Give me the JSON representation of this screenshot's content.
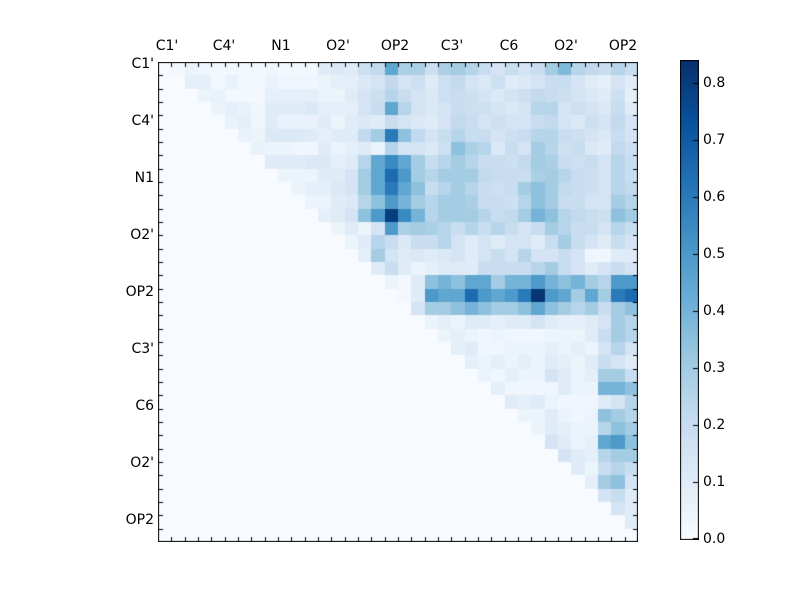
{
  "figure": {
    "background": "#ffffff",
    "frame_color": "#000000"
  },
  "chart_data": {
    "type": "heatmap",
    "title": "",
    "xlabel": "",
    "ylabel": "",
    "n_rows": 36,
    "n_cols": 36,
    "group_size": 4,
    "shape": "upper-triangular, diagonal and lower triangle empty (0)",
    "colormap": "Blues",
    "vmin": 0.0,
    "vmax": 0.84,
    "grid": false,
    "legend_position": "colorbar-right",
    "x_tick_labels": [
      "C1'",
      "C4'",
      "N1",
      "O2'",
      "OP2",
      "C3'",
      "C6",
      "O2'",
      "OP2"
    ],
    "y_tick_labels": [
      "C1'",
      "C4'",
      "N1",
      "O2'",
      "OP2",
      "C3'",
      "C6",
      "O2'",
      "OP2"
    ],
    "colorbar_tick_labels": [
      "0.0",
      "0.1",
      "0.2",
      "0.3",
      "0.4",
      "0.5",
      "0.6",
      "0.7",
      "0.8"
    ],
    "matrix": [
      [
        0,
        0.02,
        0.05,
        0.03,
        0.02,
        0.02,
        0.02,
        0.02,
        0.03,
        0.02,
        0.02,
        0.02,
        0.1,
        0.12,
        0.1,
        0.18,
        0.22,
        0.45,
        0.28,
        0.28,
        0.18,
        0.28,
        0.3,
        0.25,
        0.2,
        0.15,
        0.2,
        0.15,
        0.2,
        0.3,
        0.38,
        0.25,
        0.22,
        0.2,
        0.25,
        0.2
      ],
      [
        0,
        0,
        0.08,
        0.08,
        0.02,
        0.06,
        0.02,
        0.02,
        0.06,
        0.03,
        0.03,
        0.03,
        0.05,
        0.08,
        0.08,
        0.12,
        0.15,
        0.22,
        0.15,
        0.18,
        0.1,
        0.18,
        0.22,
        0.15,
        0.12,
        0.18,
        0.1,
        0.12,
        0.15,
        0.2,
        0.2,
        0.15,
        0.1,
        0.08,
        0.15,
        0.1
      ],
      [
        0,
        0,
        0,
        0.05,
        0.06,
        0.02,
        0.02,
        0.02,
        0.08,
        0.08,
        0.08,
        0.08,
        0.05,
        0.05,
        0.1,
        0.15,
        0.18,
        0.25,
        0.2,
        0.15,
        0.12,
        0.18,
        0.2,
        0.18,
        0.15,
        0.12,
        0.15,
        0.18,
        0.22,
        0.2,
        0.18,
        0.15,
        0.12,
        0.1,
        0.18,
        0.08
      ],
      [
        0,
        0,
        0,
        0,
        0.05,
        0.08,
        0.06,
        0.03,
        0.1,
        0.1,
        0.1,
        0.12,
        0.08,
        0.08,
        0.08,
        0.15,
        0.2,
        0.45,
        0.25,
        0.15,
        0.12,
        0.15,
        0.2,
        0.18,
        0.18,
        0.15,
        0.12,
        0.15,
        0.25,
        0.25,
        0.15,
        0.18,
        0.15,
        0.12,
        0.2,
        0.1
      ],
      [
        0,
        0,
        0,
        0,
        0,
        0.06,
        0.08,
        0.03,
        0.1,
        0.06,
        0.06,
        0.06,
        0.1,
        0.05,
        0.1,
        0.12,
        0.1,
        0.2,
        0.15,
        0.12,
        0.1,
        0.15,
        0.22,
        0.2,
        0.15,
        0.18,
        0.15,
        0.15,
        0.2,
        0.22,
        0.15,
        0.12,
        0.18,
        0.15,
        0.22,
        0.15
      ],
      [
        0,
        0,
        0,
        0,
        0,
        0,
        0.06,
        0.05,
        0.12,
        0.12,
        0.12,
        0.1,
        0.08,
        0.1,
        0.1,
        0.22,
        0.3,
        0.6,
        0.35,
        0.22,
        0.15,
        0.2,
        0.25,
        0.2,
        0.2,
        0.15,
        0.18,
        0.2,
        0.25,
        0.25,
        0.2,
        0.18,
        0.15,
        0.12,
        0.2,
        0.15
      ],
      [
        0,
        0,
        0,
        0,
        0,
        0,
        0,
        0.06,
        0.05,
        0.05,
        0.03,
        0.03,
        0.1,
        0.05,
        0.08,
        0.1,
        0.05,
        0.25,
        0.15,
        0.15,
        0.12,
        0.18,
        0.35,
        0.28,
        0.25,
        0.12,
        0.2,
        0.15,
        0.3,
        0.25,
        0.18,
        0.2,
        0.12,
        0.1,
        0.22,
        0.18
      ],
      [
        0,
        0,
        0,
        0,
        0,
        0,
        0,
        0,
        0.1,
        0.1,
        0.1,
        0.12,
        0.12,
        0.08,
        0.1,
        0.25,
        0.45,
        0.55,
        0.45,
        0.3,
        0.2,
        0.25,
        0.3,
        0.25,
        0.2,
        0.2,
        0.18,
        0.22,
        0.3,
        0.28,
        0.2,
        0.18,
        0.2,
        0.15,
        0.25,
        0.2
      ],
      [
        0,
        0,
        0,
        0,
        0,
        0,
        0,
        0,
        0,
        0.05,
        0.05,
        0.05,
        0.1,
        0.1,
        0.15,
        0.3,
        0.45,
        0.65,
        0.5,
        0.3,
        0.25,
        0.3,
        0.3,
        0.3,
        0.22,
        0.2,
        0.2,
        0.2,
        0.28,
        0.3,
        0.25,
        0.2,
        0.18,
        0.15,
        0.25,
        0.2
      ],
      [
        0,
        0,
        0,
        0,
        0,
        0,
        0,
        0,
        0,
        0,
        0.05,
        0.08,
        0.08,
        0.12,
        0.15,
        0.3,
        0.45,
        0.6,
        0.45,
        0.35,
        0.2,
        0.25,
        0.3,
        0.25,
        0.2,
        0.18,
        0.2,
        0.3,
        0.35,
        0.3,
        0.22,
        0.2,
        0.18,
        0.15,
        0.25,
        0.22
      ],
      [
        0,
        0,
        0,
        0,
        0,
        0,
        0,
        0,
        0,
        0,
        0,
        0.05,
        0.05,
        0.1,
        0.12,
        0.25,
        0.35,
        0.5,
        0.4,
        0.3,
        0.25,
        0.3,
        0.3,
        0.28,
        0.2,
        0.2,
        0.18,
        0.25,
        0.35,
        0.3,
        0.2,
        0.2,
        0.15,
        0.15,
        0.3,
        0.25
      ],
      [
        0,
        0,
        0,
        0,
        0,
        0,
        0,
        0,
        0,
        0,
        0,
        0,
        0.08,
        0.1,
        0.15,
        0.35,
        0.5,
        0.8,
        0.55,
        0.4,
        0.25,
        0.3,
        0.3,
        0.3,
        0.25,
        0.2,
        0.22,
        0.3,
        0.4,
        0.35,
        0.25,
        0.22,
        0.2,
        0.18,
        0.35,
        0.3
      ],
      [
        0,
        0,
        0,
        0,
        0,
        0,
        0,
        0,
        0,
        0,
        0,
        0,
        0,
        0.05,
        0.1,
        0.05,
        0.15,
        0.5,
        0.28,
        0.3,
        0.28,
        0.25,
        0.2,
        0.25,
        0.2,
        0.25,
        0.2,
        0.15,
        0.2,
        0.3,
        0.25,
        0.2,
        0.2,
        0.15,
        0.25,
        0.2
      ],
      [
        0,
        0,
        0,
        0,
        0,
        0,
        0,
        0,
        0,
        0,
        0,
        0,
        0,
        0,
        0.05,
        0.1,
        0.25,
        0.2,
        0.12,
        0.2,
        0.2,
        0.25,
        0.15,
        0.1,
        0.15,
        0.1,
        0.15,
        0.15,
        0.1,
        0.2,
        0.3,
        0.2,
        0.15,
        0.1,
        0.2,
        0.15
      ],
      [
        0,
        0,
        0,
        0,
        0,
        0,
        0,
        0,
        0,
        0,
        0,
        0,
        0,
        0,
        0,
        0.08,
        0.3,
        0.15,
        0.1,
        0.12,
        0.1,
        0.12,
        0.15,
        0.1,
        0.15,
        0.2,
        0.15,
        0.25,
        0.15,
        0.15,
        0.2,
        0.15,
        0.03,
        0.03,
        0.1,
        0.1
      ],
      [
        0,
        0,
        0,
        0,
        0,
        0,
        0,
        0,
        0,
        0,
        0,
        0,
        0,
        0,
        0,
        0,
        0.1,
        0.2,
        0.1,
        0.05,
        0.08,
        0.1,
        0.1,
        0.1,
        0.2,
        0.2,
        0.2,
        0.2,
        0.25,
        0.3,
        0.2,
        0.15,
        0.1,
        0.15,
        0.2,
        0.15
      ],
      [
        0,
        0,
        0,
        0,
        0,
        0,
        0,
        0,
        0,
        0,
        0,
        0,
        0,
        0,
        0,
        0,
        0,
        0.05,
        0.02,
        0.1,
        0.35,
        0.4,
        0.35,
        0.45,
        0.45,
        0.3,
        0.4,
        0.4,
        0.5,
        0.4,
        0.35,
        0.4,
        0.3,
        0.25,
        0.5,
        0.5
      ],
      [
        0,
        0,
        0,
        0,
        0,
        0,
        0,
        0,
        0,
        0,
        0,
        0,
        0,
        0,
        0,
        0,
        0,
        0,
        0.02,
        0.1,
        0.5,
        0.45,
        0.45,
        0.65,
        0.5,
        0.45,
        0.5,
        0.6,
        0.82,
        0.5,
        0.45,
        0.3,
        0.45,
        0.3,
        0.6,
        0.65
      ],
      [
        0,
        0,
        0,
        0,
        0,
        0,
        0,
        0,
        0,
        0,
        0,
        0,
        0,
        0,
        0,
        0,
        0,
        0,
        0,
        0.15,
        0.3,
        0.3,
        0.35,
        0.4,
        0.35,
        0.3,
        0.3,
        0.35,
        0.45,
        0.35,
        0.3,
        0.25,
        0.3,
        0.2,
        0.3,
        0.35
      ],
      [
        0,
        0,
        0,
        0,
        0,
        0,
        0,
        0,
        0,
        0,
        0,
        0,
        0,
        0,
        0,
        0,
        0,
        0,
        0,
        0,
        0.05,
        0.08,
        0.05,
        0.1,
        0.1,
        0.08,
        0.1,
        0.1,
        0.15,
        0.1,
        0.08,
        0.08,
        0.1,
        0.15,
        0.3,
        0.25
      ],
      [
        0,
        0,
        0,
        0,
        0,
        0,
        0,
        0,
        0,
        0,
        0,
        0,
        0,
        0,
        0,
        0,
        0,
        0,
        0,
        0,
        0,
        0.05,
        0.08,
        0.05,
        0.03,
        0.05,
        0.03,
        0.03,
        0.03,
        0.05,
        0.05,
        0.05,
        0.1,
        0.2,
        0.3,
        0.25
      ],
      [
        0,
        0,
        0,
        0,
        0,
        0,
        0,
        0,
        0,
        0,
        0,
        0,
        0,
        0,
        0,
        0,
        0,
        0,
        0,
        0,
        0,
        0,
        0.08,
        0.1,
        0.03,
        0.03,
        0.05,
        0.05,
        0.05,
        0.08,
        0.05,
        0.08,
        0.05,
        0.15,
        0.25,
        0.15
      ],
      [
        0,
        0,
        0,
        0,
        0,
        0,
        0,
        0,
        0,
        0,
        0,
        0,
        0,
        0,
        0,
        0,
        0,
        0,
        0,
        0,
        0,
        0,
        0,
        0.08,
        0.05,
        0.08,
        0.05,
        0.08,
        0.05,
        0.1,
        0.08,
        0.05,
        0.1,
        0.2,
        0.15,
        0.1
      ],
      [
        0,
        0,
        0,
        0,
        0,
        0,
        0,
        0,
        0,
        0,
        0,
        0,
        0,
        0,
        0,
        0,
        0,
        0,
        0,
        0,
        0,
        0,
        0,
        0,
        0.05,
        0.03,
        0.08,
        0.05,
        0.05,
        0.15,
        0.1,
        0.05,
        0.08,
        0.3,
        0.3,
        0.2
      ],
      [
        0,
        0,
        0,
        0,
        0,
        0,
        0,
        0,
        0,
        0,
        0,
        0,
        0,
        0,
        0,
        0,
        0,
        0,
        0,
        0,
        0,
        0,
        0,
        0,
        0,
        0.08,
        0.03,
        0.03,
        0.03,
        0.03,
        0.1,
        0.05,
        0.05,
        0.4,
        0.4,
        0.35
      ],
      [
        0,
        0,
        0,
        0,
        0,
        0,
        0,
        0,
        0,
        0,
        0,
        0,
        0,
        0,
        0,
        0,
        0,
        0,
        0,
        0,
        0,
        0,
        0,
        0,
        0,
        0,
        0.1,
        0.08,
        0.1,
        0.05,
        0.03,
        0.03,
        0.03,
        0.1,
        0.15,
        0.25
      ],
      [
        0,
        0,
        0,
        0,
        0,
        0,
        0,
        0,
        0,
        0,
        0,
        0,
        0,
        0,
        0,
        0,
        0,
        0,
        0,
        0,
        0,
        0,
        0,
        0,
        0,
        0,
        0,
        0.05,
        0.05,
        0.1,
        0.05,
        0.03,
        0.05,
        0.35,
        0.3,
        0.25
      ],
      [
        0,
        0,
        0,
        0,
        0,
        0,
        0,
        0,
        0,
        0,
        0,
        0,
        0,
        0,
        0,
        0,
        0,
        0,
        0,
        0,
        0,
        0,
        0,
        0,
        0,
        0,
        0,
        0,
        0.05,
        0.1,
        0.08,
        0.05,
        0.05,
        0.25,
        0.35,
        0.3
      ],
      [
        0,
        0,
        0,
        0,
        0,
        0,
        0,
        0,
        0,
        0,
        0,
        0,
        0,
        0,
        0,
        0,
        0,
        0,
        0,
        0,
        0,
        0,
        0,
        0,
        0,
        0,
        0,
        0,
        0,
        0.15,
        0.1,
        0.05,
        0.08,
        0.45,
        0.5,
        0.35
      ],
      [
        0,
        0,
        0,
        0,
        0,
        0,
        0,
        0,
        0,
        0,
        0,
        0,
        0,
        0,
        0,
        0,
        0,
        0,
        0,
        0,
        0,
        0,
        0,
        0,
        0,
        0,
        0,
        0,
        0,
        0,
        0.15,
        0.1,
        0.08,
        0.25,
        0.3,
        0.3
      ],
      [
        0,
        0,
        0,
        0,
        0,
        0,
        0,
        0,
        0,
        0,
        0,
        0,
        0,
        0,
        0,
        0,
        0,
        0,
        0,
        0,
        0,
        0,
        0,
        0,
        0,
        0,
        0,
        0,
        0,
        0,
        0,
        0.1,
        0.05,
        0.2,
        0.25,
        0.2
      ],
      [
        0,
        0,
        0,
        0,
        0,
        0,
        0,
        0,
        0,
        0,
        0,
        0,
        0,
        0,
        0,
        0,
        0,
        0,
        0,
        0,
        0,
        0,
        0,
        0,
        0,
        0,
        0,
        0,
        0,
        0,
        0,
        0,
        0.08,
        0.3,
        0.35,
        0.15
      ],
      [
        0,
        0,
        0,
        0,
        0,
        0,
        0,
        0,
        0,
        0,
        0,
        0,
        0,
        0,
        0,
        0,
        0,
        0,
        0,
        0,
        0,
        0,
        0,
        0,
        0,
        0,
        0,
        0,
        0,
        0,
        0,
        0,
        0,
        0.15,
        0.2,
        0.1
      ],
      [
        0,
        0,
        0,
        0,
        0,
        0,
        0,
        0,
        0,
        0,
        0,
        0,
        0,
        0,
        0,
        0,
        0,
        0,
        0,
        0,
        0,
        0,
        0,
        0,
        0,
        0,
        0,
        0,
        0,
        0,
        0,
        0,
        0,
        0,
        0.15,
        0.1
      ],
      [
        0,
        0,
        0,
        0,
        0,
        0,
        0,
        0,
        0,
        0,
        0,
        0,
        0,
        0,
        0,
        0,
        0,
        0,
        0,
        0,
        0,
        0,
        0,
        0,
        0,
        0,
        0,
        0,
        0,
        0,
        0,
        0,
        0,
        0,
        0,
        0.1
      ],
      [
        0,
        0,
        0,
        0,
        0,
        0,
        0,
        0,
        0,
        0,
        0,
        0,
        0,
        0,
        0,
        0,
        0,
        0,
        0,
        0,
        0,
        0,
        0,
        0,
        0,
        0,
        0,
        0,
        0,
        0,
        0,
        0,
        0,
        0,
        0,
        0
      ]
    ]
  },
  "colors": {
    "colormap_stops": [
      {
        "t": 0.0,
        "hex": "#f7fbff"
      },
      {
        "t": 0.125,
        "hex": "#deebf7"
      },
      {
        "t": 0.25,
        "hex": "#c6dbef"
      },
      {
        "t": 0.375,
        "hex": "#9ecae1"
      },
      {
        "t": 0.5,
        "hex": "#6baed6"
      },
      {
        "t": 0.625,
        "hex": "#4292c6"
      },
      {
        "t": 0.75,
        "hex": "#2171b5"
      },
      {
        "t": 0.875,
        "hex": "#08519c"
      },
      {
        "t": 1.0,
        "hex": "#08306b"
      }
    ],
    "tick_color": "#000000",
    "label_color": "#000000"
  }
}
